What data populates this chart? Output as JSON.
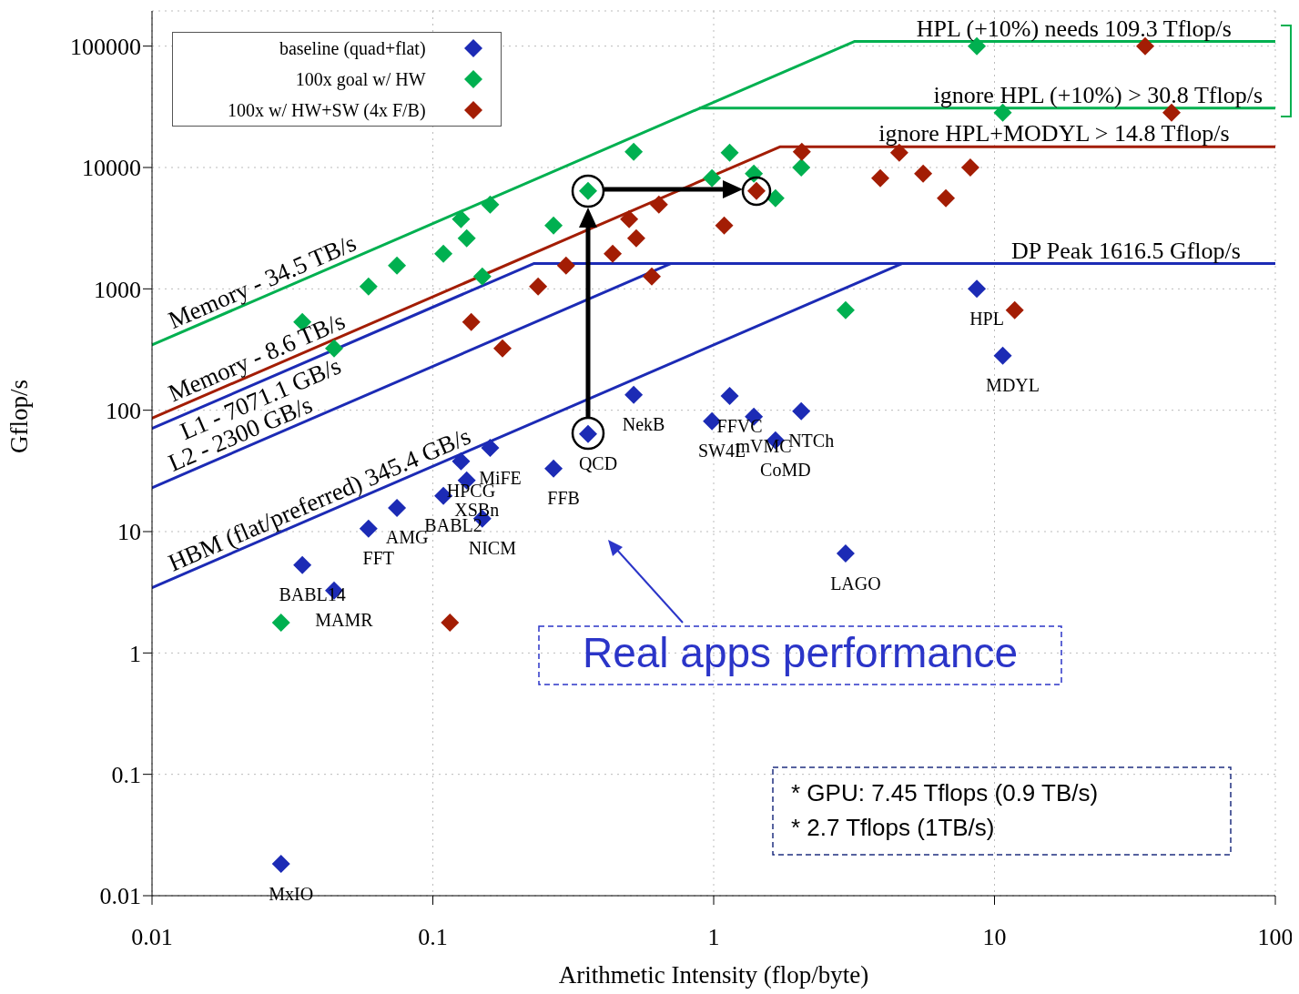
{
  "chart_data": {
    "type": "scatter",
    "xlabel": "Arithmetic Intensity (flop/byte)",
    "ylabel": "Gflop/s",
    "log": "xy",
    "grid": true,
    "legend": "top left",
    "marker": "diamond",
    "xlim": [
      0.01,
      100
    ],
    "xticks": [
      0.01,
      0.1,
      1,
      10,
      100
    ],
    "ylim": [
      0.01,
      195000
    ],
    "yticks": [
      0.01,
      0.1,
      1,
      10,
      100,
      1000,
      10000,
      100000
    ],
    "series": [
      {
        "name": "baseline (quad+flat)",
        "color": "#1c2bb5",
        "x": [
          0.0288,
          0.0343,
          0.0445,
          0.059,
          0.0745,
          0.109,
          0.126,
          0.132,
          0.16,
          0.15,
          0.269,
          0.357,
          0.519,
          0.986,
          1.14,
          1.39,
          1.66,
          2.05,
          2.95,
          8.65,
          10.7
        ],
        "values": [
          0.0183,
          5.3,
          3.27,
          10.6,
          15.7,
          19.7,
          37.9,
          26.4,
          49,
          12.8,
          33,
          63.7,
          134,
          81,
          131,
          88.5,
          56.5,
          98,
          6.6,
          1000,
          281
        ]
      },
      {
        "name": "100x goal w/ HW",
        "color": "#00b050",
        "x": [
          0.0288,
          0.0343,
          0.0445,
          0.059,
          0.0745,
          0.109,
          0.126,
          0.132,
          0.16,
          0.15,
          0.269,
          0.357,
          0.519,
          0.986,
          1.14,
          1.39,
          1.66,
          2.05,
          2.95,
          8.65,
          10.7
        ],
        "values": [
          1.78,
          533,
          323,
          1047,
          1556,
          1950,
          3760,
          2610,
          4950,
          1265,
          3330,
          6410,
          13500,
          8160,
          13250,
          8910,
          5590,
          10000,
          667,
          100000,
          28300
        ]
      },
      {
        "name": "100x w/ HW+SW (4x F/B)",
        "color": "#a31d04",
        "x": [
          0.115,
          0.137,
          0.177,
          0.237,
          0.298,
          0.437,
          0.5,
          0.53,
          0.638,
          0.602,
          1.09,
          1.42,
          2.06,
          3.92,
          4.58,
          5.57,
          6.71,
          8.2,
          11.8,
          34.4,
          42.7
        ],
        "values": [
          1.78,
          533,
          323,
          1047,
          1556,
          1950,
          3760,
          2610,
          4950,
          1265,
          3330,
          6410,
          13500,
          8160,
          13250,
          8910,
          5590,
          10000,
          667,
          100000,
          28300
        ]
      },
      {
        "type": "line",
        "marker": "none",
        "name": "Memory - 34.5 TB/s",
        "color": "#00b050",
        "x": [
          0.01,
          3.168,
          100
        ],
        "values": [
          345,
          109300,
          109300
        ]
      },
      {
        "type": "line",
        "marker": "none",
        "name": "ignore HPL (+10%) > 30.8 Tflop/s",
        "color": "#00b050",
        "x": [
          0.893,
          100
        ],
        "values": [
          30800,
          30800
        ]
      },
      {
        "type": "line",
        "marker": "none",
        "name": "Memory - 8.6 TB/s",
        "color": "#a31d04",
        "x": [
          0.01,
          1.72,
          100
        ],
        "values": [
          86,
          14800,
          14800
        ]
      },
      {
        "type": "line",
        "marker": "none",
        "name": "L1 - 7071.1 GB/s",
        "color": "#1c2bb5",
        "x": [
          0.01,
          0.2286,
          100
        ],
        "values": [
          70.7,
          1616.5,
          1616.5
        ]
      },
      {
        "type": "line",
        "marker": "none",
        "name": "L2 - 2300 GB/s",
        "color": "#1c2bb5",
        "x": [
          0.01,
          0.703
        ],
        "values": [
          23,
          1616.5
        ]
      },
      {
        "type": "line",
        "marker": "none",
        "name": "HBM (flat/preferred) 345.4 GB/s",
        "color": "#1c2bb5",
        "x": [
          0.01,
          4.68
        ],
        "values": [
          3.454,
          1616.5
        ]
      }
    ],
    "annotations": [
      {
        "text": "MxIO",
        "x": 0.0288,
        "y": 0.0183
      },
      {
        "text": "BABL14",
        "x": 0.0343,
        "y": 5.3
      },
      {
        "text": "MAMR",
        "x": 0.0445,
        "y": 3.27
      },
      {
        "text": "FFT",
        "x": 0.059,
        "y": 10.6
      },
      {
        "text": "AMG",
        "x": 0.0745,
        "y": 15.7
      },
      {
        "text": "BABL2",
        "x": 0.109,
        "y": 19.7
      },
      {
        "text": "NICM",
        "x": 0.15,
        "y": 12.8
      },
      {
        "text": "XSBn",
        "x": 0.132,
        "y": 26.4
      },
      {
        "text": "HPCG",
        "x": 0.126,
        "y": 37.9
      },
      {
        "text": "MiFE",
        "x": 0.16,
        "y": 49
      },
      {
        "text": "QCD",
        "x": 0.357,
        "y": 63.7
      },
      {
        "text": "FFB",
        "x": 0.269,
        "y": 33
      },
      {
        "text": "NekB",
        "x": 0.519,
        "y": 134
      },
      {
        "text": "FFVC",
        "x": 1.14,
        "y": 131
      },
      {
        "text": "SW4L",
        "x": 0.986,
        "y": 81
      },
      {
        "text": "mVMC",
        "x": 1.39,
        "y": 88.5
      },
      {
        "text": "NTCh",
        "x": 2.05,
        "y": 98
      },
      {
        "text": "CoMD",
        "x": 1.66,
        "y": 56.5
      },
      {
        "text": "LAGO",
        "x": 2.95,
        "y": 6.6
      },
      {
        "text": "HPL",
        "x": 8.65,
        "y": 1000
      },
      {
        "text": "MDYL",
        "x": 10.7,
        "y": 281
      },
      {
        "text": "HPL (+10%) needs 109.3 Tflop/s",
        "x": 19.2,
        "y": 109300
      },
      {
        "text": "ignore HPL+MODYL > 14.8 Tflop/s",
        "x": 16.3,
        "y": 14800
      },
      {
        "text": "DP Peak 1616.5 Gflop/s",
        "x": 29.4,
        "y": 1616.5
      },
      "Real apps performance",
      "* GPU: 7.45 Tflops (0.9 TB/s)",
      "* 2.7 Tflops (1TB/s)"
    ]
  }
}
